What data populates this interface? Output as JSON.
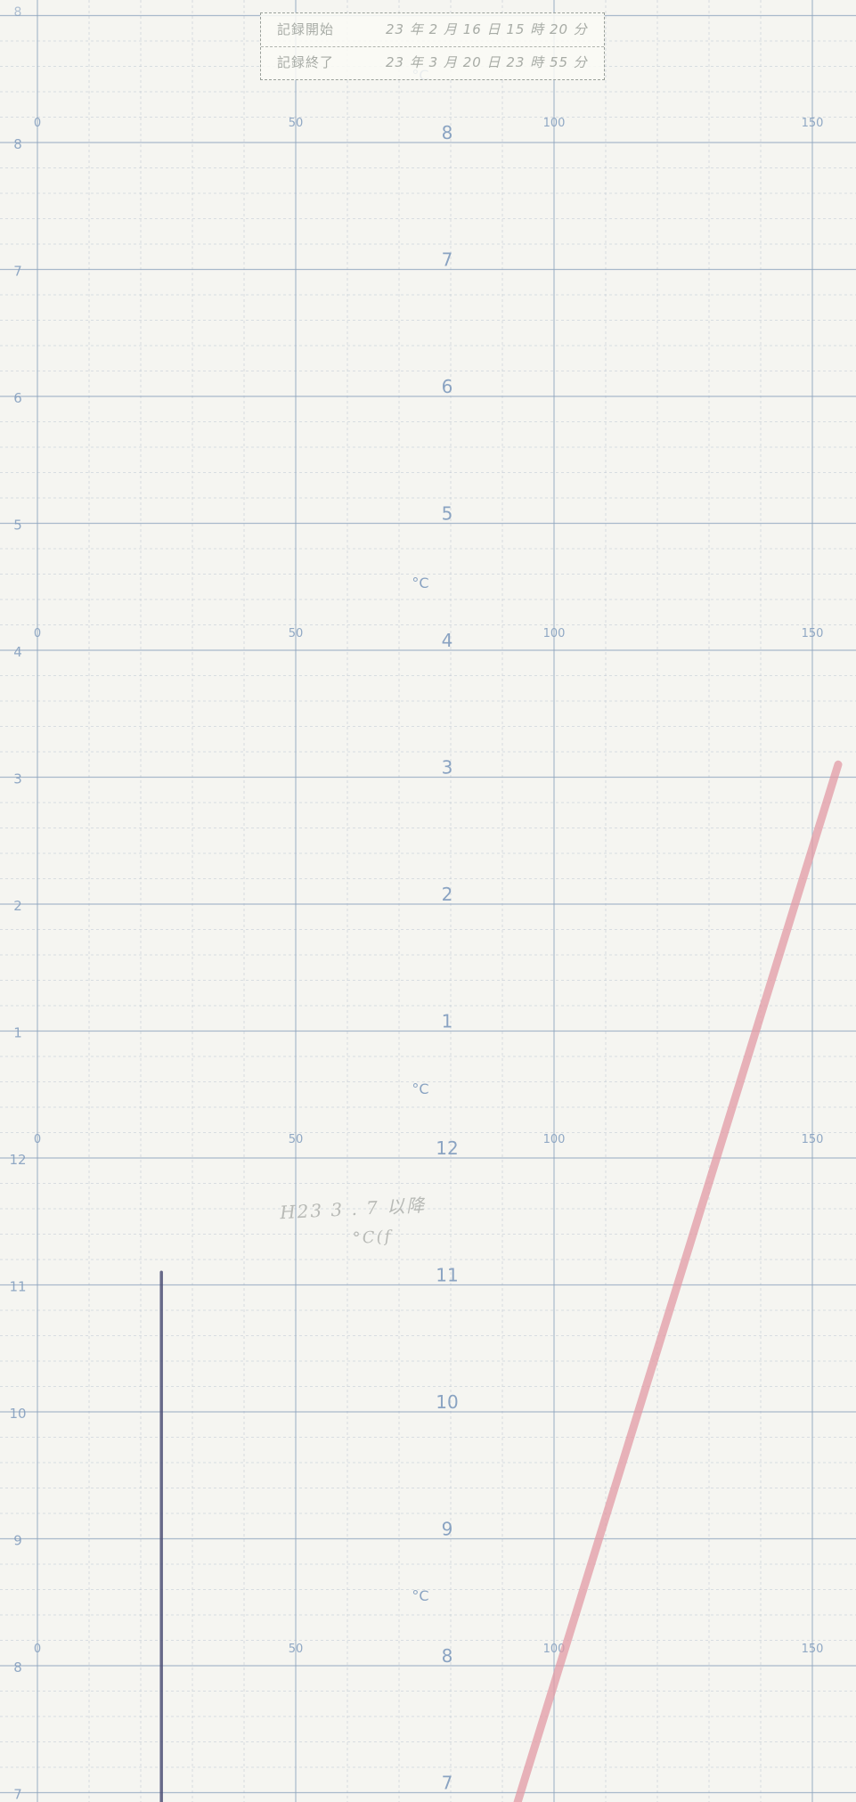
{
  "stamp": {
    "start_label": "記録開始",
    "start_value": "23 年 2 月 16 日 15 時 20 分",
    "end_label": "記録終了",
    "end_value": "23 年 3 月 20 日 23 時 55 分"
  },
  "handwritten_note": {
    "line1": "H23 3 . 7 以降",
    "line2": "°C(f"
  },
  "colors": {
    "paper": "#f5f5f1",
    "grid_major": "#8fa5bf",
    "grid_minor": "#b9c3cf",
    "label": "#7f9bbd",
    "pen_temp": "#e29aa4",
    "pen_ref": "#4e5077"
  },
  "chart_data": {
    "type": "line",
    "title": "",
    "xlabel": "°C",
    "ylabel": "",
    "xlim": [
      0,
      160
    ],
    "x_ticks": [
      0,
      50,
      100,
      150
    ],
    "bands": [
      {
        "unit_label": "°C",
        "hour_ticks": [
          "8",
          "7",
          "6",
          "5",
          "4",
          "3",
          "2",
          "1",
          "12",
          "11",
          "10",
          "9",
          "8",
          "7"
        ]
      }
    ],
    "hour_sequence": [
      8,
      7,
      6,
      5,
      4,
      3,
      2,
      1,
      12,
      11,
      10,
      9,
      8,
      7
    ],
    "series": [
      {
        "points": [
          [
            155,
            8.1
          ],
          [
            92,
            -0.2
          ]
        ]
      },
      {
        "points": [
          [
            24,
            4.1
          ],
          [
            24,
            -0.2
          ]
        ]
      }
    ]
  },
  "left_hour_labels": [
    "8",
    "7",
    "6",
    "5",
    "4",
    "3",
    "2",
    "1",
    "12",
    "11",
    "10",
    "9",
    "8",
    "7"
  ],
  "center_hour_labels": [
    "8",
    "7",
    "6",
    "5",
    "4",
    "3",
    "2",
    "1",
    "12",
    "11",
    "10",
    "9",
    "8",
    "7"
  ],
  "x_tick_labels": [
    "0",
    "50",
    "100",
    "150"
  ],
  "unit_label": "°C"
}
